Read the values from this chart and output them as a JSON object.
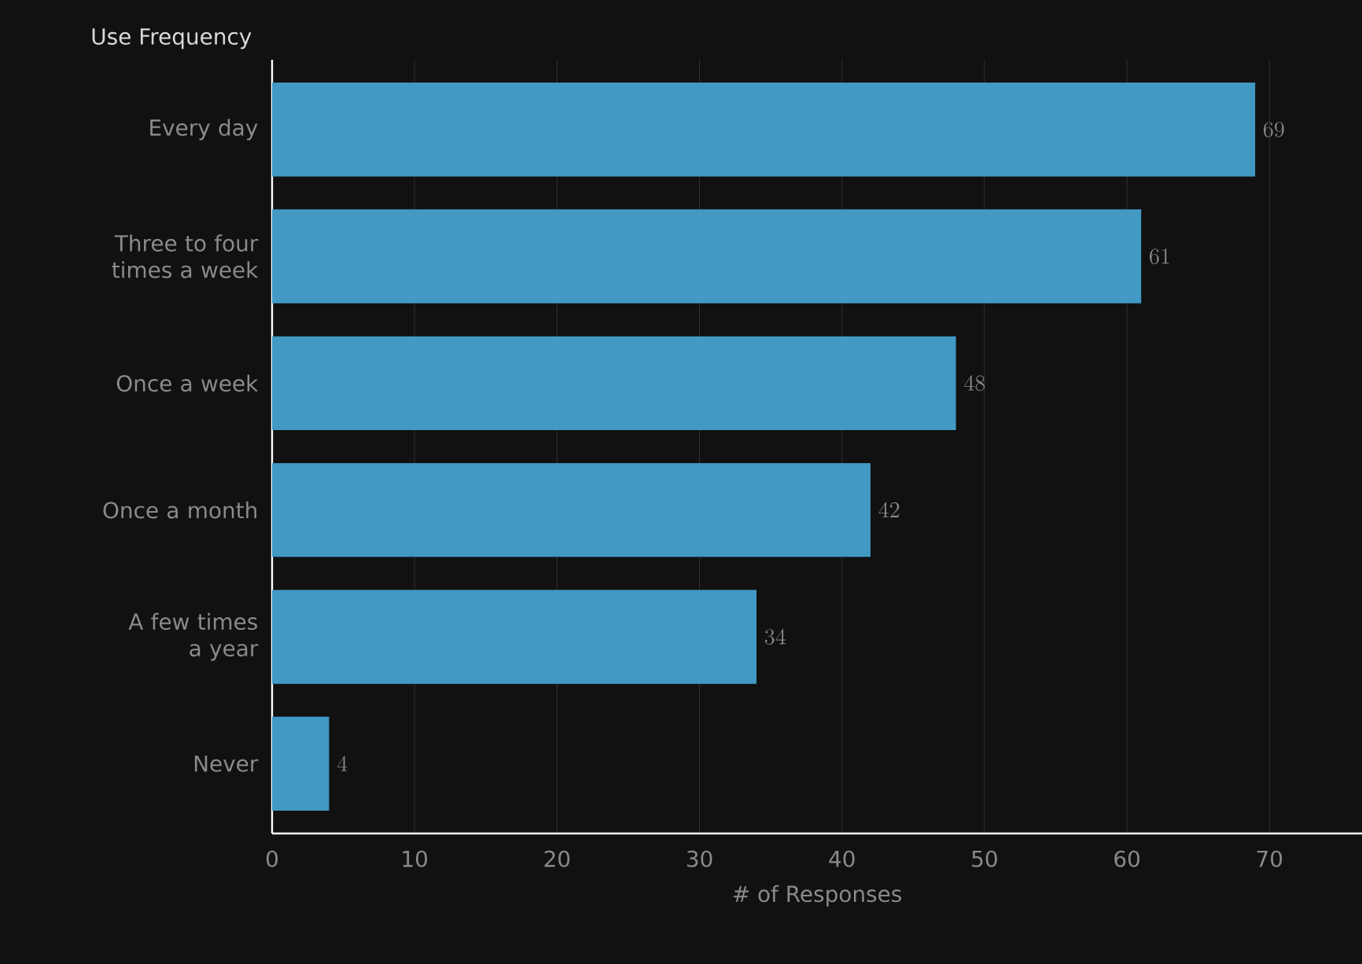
{
  "chart_data": {
    "type": "bar",
    "orientation": "horizontal",
    "xlabel": "# of Responses",
    "ylabel": "Use Frequency",
    "categories": [
      "Every day",
      "Three to four times a week",
      "Once a week",
      "Once a month",
      "A few times a year",
      "Never"
    ],
    "values": [
      69,
      61,
      48,
      42,
      34,
      4
    ],
    "color": "#4199c4",
    "xlim": [
      0,
      76.5
    ],
    "xticks": [
      0,
      10,
      20,
      30,
      40,
      50,
      60,
      70
    ],
    "grid": "x",
    "data_labels": true
  }
}
